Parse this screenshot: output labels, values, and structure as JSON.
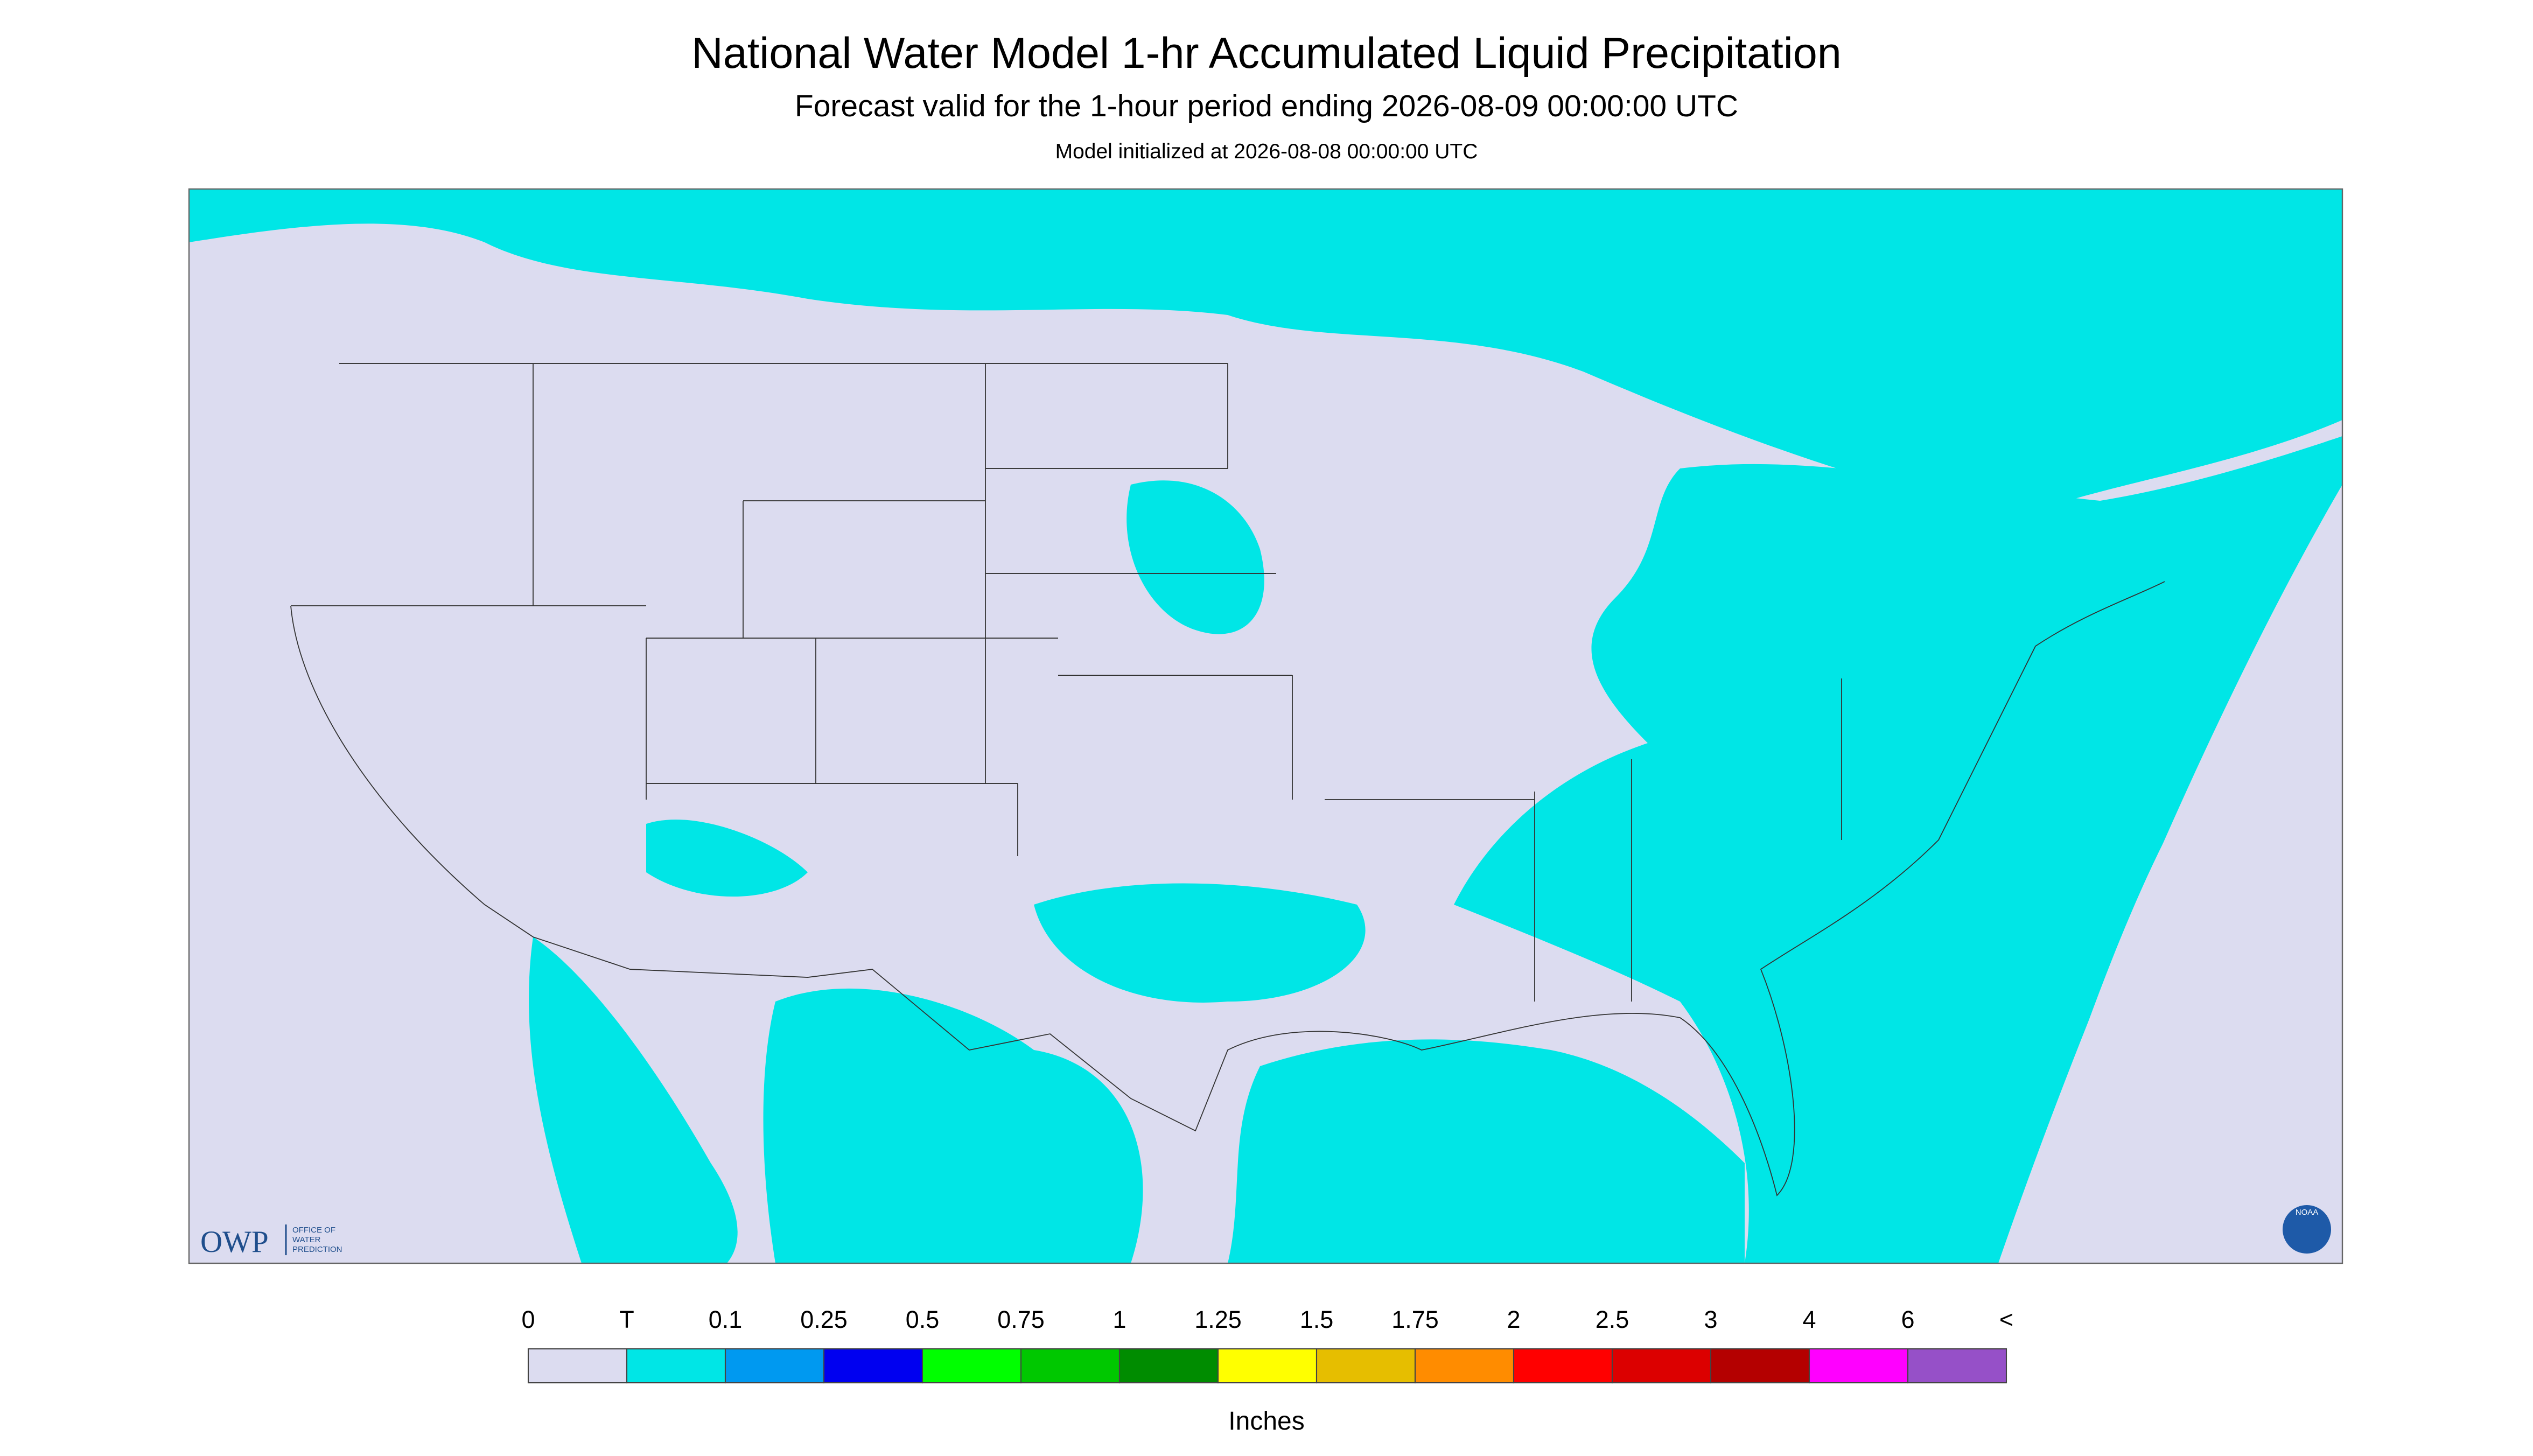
{
  "header": {
    "title": "National Water Model 1-hr Accumulated Liquid Precipitation",
    "subtitle": "Forecast valid for the 1-hour period ending 2026-08-09 00:00:00 UTC",
    "init": "Model initialized at 2026-08-08 00:00:00 UTC"
  },
  "map": {
    "background": "#dcdcf0",
    "precip_color": "#00e6e6",
    "logo": "OWP",
    "logo_sub": [
      "OFFICE OF",
      "WATER",
      "PREDICTION"
    ],
    "badge": "NOAA"
  },
  "legend": {
    "labels": [
      "0",
      "T",
      "0.1",
      "0.25",
      "0.5",
      "0.75",
      "1",
      "1.25",
      "1.5",
      "1.75",
      "2",
      "2.5",
      "3",
      "4",
      "6",
      "<"
    ],
    "colors": [
      "#dcdcf0",
      "#00e6e6",
      "#0099f0",
      "#0000f0",
      "#00ff00",
      "#00c800",
      "#008c00",
      "#ffff00",
      "#e6be00",
      "#ff8c00",
      "#ff0000",
      "#dc0000",
      "#b40000",
      "#ff00ff",
      "#9650c8"
    ],
    "unit": "Inches"
  }
}
